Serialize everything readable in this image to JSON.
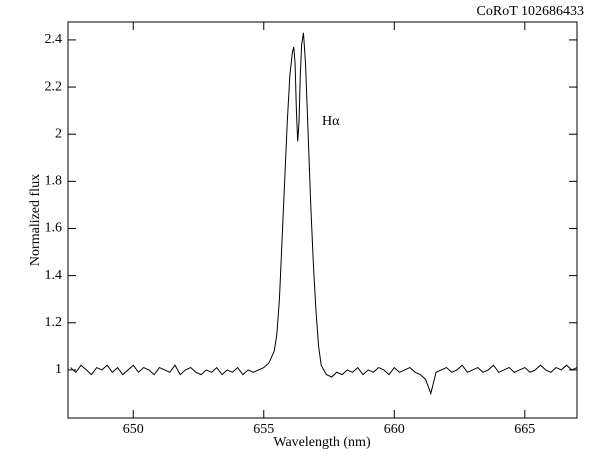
{
  "chart_data": {
    "type": "line",
    "title": "CoRoT 102686433",
    "xlabel": "Wavelength (nm)",
    "ylabel": "Normalized flux",
    "annotation": "Hα",
    "xlim": [
      647.5,
      667
    ],
    "ylim": [
      0.796,
      2.476
    ],
    "xticks": [
      650,
      655,
      660,
      665
    ],
    "yticks": [
      1,
      1.2,
      1.4,
      1.6,
      1.8,
      2,
      2.2,
      2.4
    ],
    "series": [
      {
        "color": "#000000",
        "x": [
          647.6,
          647.8,
          648.0,
          648.2,
          648.4,
          648.6,
          648.8,
          649.0,
          649.2,
          649.4,
          649.6,
          649.8,
          650.0,
          650.2,
          650.4,
          650.6,
          650.8,
          651.0,
          651.2,
          651.4,
          651.6,
          651.8,
          652.0,
          652.2,
          652.4,
          652.6,
          652.8,
          653.0,
          653.2,
          653.4,
          653.6,
          653.8,
          654.0,
          654.2,
          654.4,
          654.6,
          654.8,
          655.0,
          655.2,
          655.4,
          655.5,
          655.6,
          655.7,
          655.8,
          655.9,
          656.0,
          656.1,
          656.15,
          656.2,
          656.25,
          656.3,
          656.35,
          656.4,
          656.45,
          656.52,
          656.6,
          656.7,
          656.8,
          656.9,
          657.0,
          657.1,
          657.2,
          657.4,
          657.6,
          657.8,
          658.0,
          658.2,
          658.4,
          658.6,
          658.8,
          659.0,
          659.2,
          659.4,
          659.6,
          659.8,
          660.0,
          660.2,
          660.4,
          660.6,
          660.8,
          661.0,
          661.2,
          661.4,
          661.6,
          661.8,
          662.0,
          662.2,
          662.4,
          662.6,
          662.8,
          663.0,
          663.2,
          663.4,
          663.6,
          663.8,
          664.0,
          664.2,
          664.4,
          664.6,
          664.8,
          665.0,
          665.2,
          665.4,
          665.6,
          665.8,
          666.0,
          666.2,
          666.4,
          666.6,
          666.8,
          667.0
        ],
        "values": [
          1.01,
          0.99,
          1.02,
          1.0,
          0.98,
          1.01,
          1.0,
          1.02,
          0.99,
          1.01,
          0.98,
          1.0,
          1.02,
          0.99,
          1.01,
          1.0,
          0.98,
          1.01,
          1.0,
          0.99,
          1.02,
          0.98,
          1.0,
          1.01,
          0.99,
          0.98,
          1.0,
          0.99,
          1.01,
          0.98,
          1.0,
          0.99,
          1.01,
          0.98,
          1.0,
          0.99,
          1.0,
          1.01,
          1.03,
          1.08,
          1.15,
          1.3,
          1.55,
          1.8,
          2.05,
          2.25,
          2.35,
          2.37,
          2.3,
          2.1,
          1.97,
          2.05,
          2.25,
          2.38,
          2.43,
          2.3,
          2.0,
          1.7,
          1.45,
          1.25,
          1.1,
          1.02,
          0.98,
          0.97,
          0.99,
          0.98,
          1.0,
          0.99,
          1.01,
          0.98,
          1.0,
          0.99,
          1.01,
          1.0,
          0.98,
          1.01,
          0.99,
          1.0,
          1.01,
          0.99,
          0.98,
          0.96,
          0.9,
          0.99,
          1.0,
          1.01,
          0.99,
          1.0,
          1.02,
          0.99,
          1.0,
          1.01,
          0.99,
          1.0,
          1.02,
          0.99,
          1.0,
          1.01,
          0.99,
          1.0,
          1.01,
          0.99,
          1.0,
          1.02,
          1.0,
          0.99,
          1.01,
          1.0,
          1.02,
          1.0,
          1.01
        ]
      }
    ]
  }
}
